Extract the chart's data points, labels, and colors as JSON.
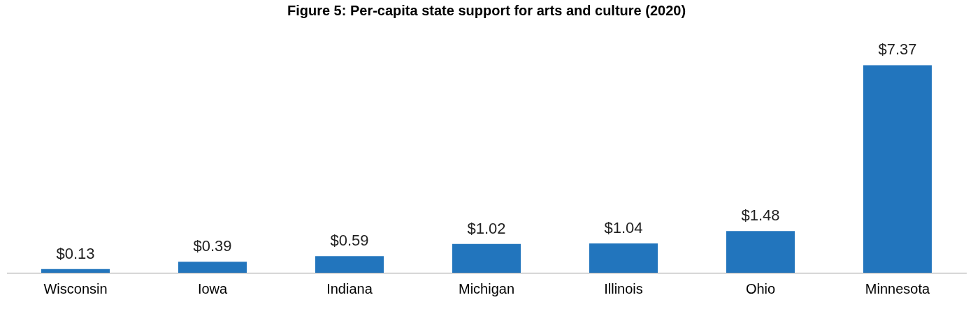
{
  "chart_data": {
    "type": "bar",
    "title": "Figure 5: Per-capita state support for arts and culture (2020)",
    "categories": [
      "Wisconsin",
      "Iowa",
      "Indiana",
      "Michigan",
      "Illinois",
      "Ohio",
      "Minnesota"
    ],
    "values": [
      0.13,
      0.39,
      0.59,
      1.02,
      1.04,
      1.48,
      7.37
    ],
    "value_labels": [
      "$0.13",
      "$0.39",
      "$0.59",
      "$1.02",
      "$1.04",
      "$1.48",
      "$7.37"
    ],
    "color": "#2275bd",
    "grid": false,
    "legend": false,
    "tick_labels": "x"
  }
}
